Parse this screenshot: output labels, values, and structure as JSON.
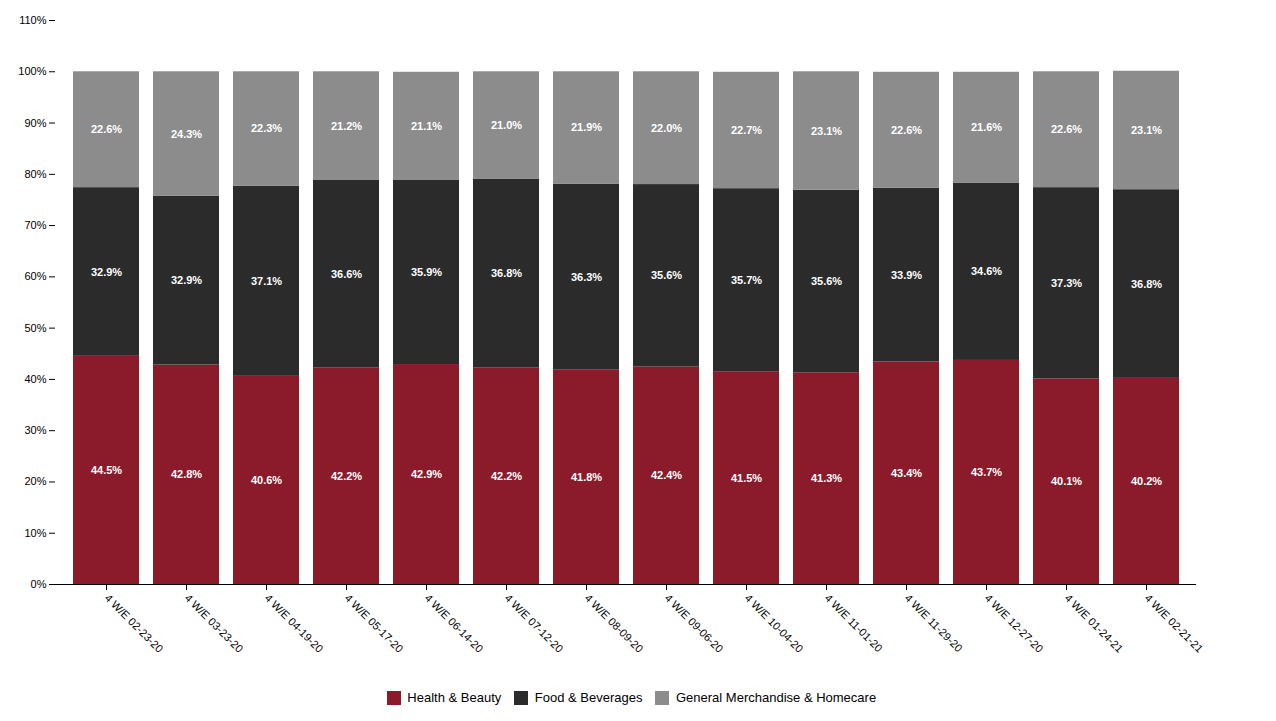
{
  "chart_data": {
    "type": "bar",
    "stacked": true,
    "data_labels": true,
    "grid": false,
    "legend": "bottom",
    "categories": [
      "4 W/E 02-23-20",
      "4 W/E 03-23-20",
      "4 W/E 04-19-20",
      "4 W/E 05-17-20",
      "4 W/E 06-14-20",
      "4 W/E 07-12-20",
      "4 W/E 08-09-20",
      "4 W/E 09-06-20",
      "4 W/E 10-04-20",
      "4 W/E 11-01-20",
      "4 W/E 11-29-20",
      "4 W/E 12-27-20",
      "4 W/E 01-24-21",
      "4 W/E 02-21-21"
    ],
    "series": [
      {
        "name": "Health & Beauty",
        "color": "#8B1A2B",
        "values": [
          44.5,
          42.8,
          40.6,
          42.2,
          42.9,
          42.2,
          41.8,
          42.4,
          41.5,
          41.3,
          43.4,
          43.7,
          40.1,
          40.2
        ],
        "value_labels": [
          "44.5%",
          "42.8%",
          "40.6%",
          "42.2%",
          "42.9%",
          "42.2%",
          "41.8%",
          "42.4%",
          "41.5%",
          "41.3%",
          "43.4%",
          "43.7%",
          "40.1%",
          "40.2%"
        ]
      },
      {
        "name": "Food & Beverages",
        "color": "#2B2B2B",
        "values": [
          32.9,
          32.9,
          37.1,
          36.6,
          35.9,
          36.8,
          36.3,
          35.6,
          35.7,
          35.6,
          33.9,
          34.6,
          37.3,
          36.8
        ],
        "value_labels": [
          "32.9%",
          "32.9%",
          "37.1%",
          "36.6%",
          "35.9%",
          "36.8%",
          "36.3%",
          "35.6%",
          "35.7%",
          "35.6%",
          "33.9%",
          "34.6%",
          "37.3%",
          "36.8%"
        ]
      },
      {
        "name": "General Merchandise & Homecare",
        "color": "#8C8C8C",
        "values": [
          22.6,
          24.3,
          22.3,
          21.2,
          21.1,
          21.0,
          21.9,
          22.0,
          22.7,
          23.1,
          22.6,
          21.6,
          22.6,
          23.1
        ],
        "value_labels": [
          "22.6%",
          "24.3%",
          "22.3%",
          "21.2%",
          "21.1%",
          "21.0%",
          "21.9%",
          "22.0%",
          "22.7%",
          "23.1%",
          "22.6%",
          "21.6%",
          "22.6%",
          "23.1%"
        ]
      }
    ],
    "ylim": [
      0,
      110
    ],
    "yticks": [
      {
        "value": 0,
        "label": "0%"
      },
      {
        "value": 10,
        "label": "10%"
      },
      {
        "value": 20,
        "label": "20%"
      },
      {
        "value": 30,
        "label": "30%"
      },
      {
        "value": 40,
        "label": "40%"
      },
      {
        "value": 50,
        "label": "50%"
      },
      {
        "value": 60,
        "label": "60%"
      },
      {
        "value": 70,
        "label": "70%"
      },
      {
        "value": 80,
        "label": "80%"
      },
      {
        "value": 90,
        "label": "90%"
      },
      {
        "value": 100,
        "label": "100%"
      },
      {
        "value": 110,
        "label": "110%"
      }
    ]
  }
}
